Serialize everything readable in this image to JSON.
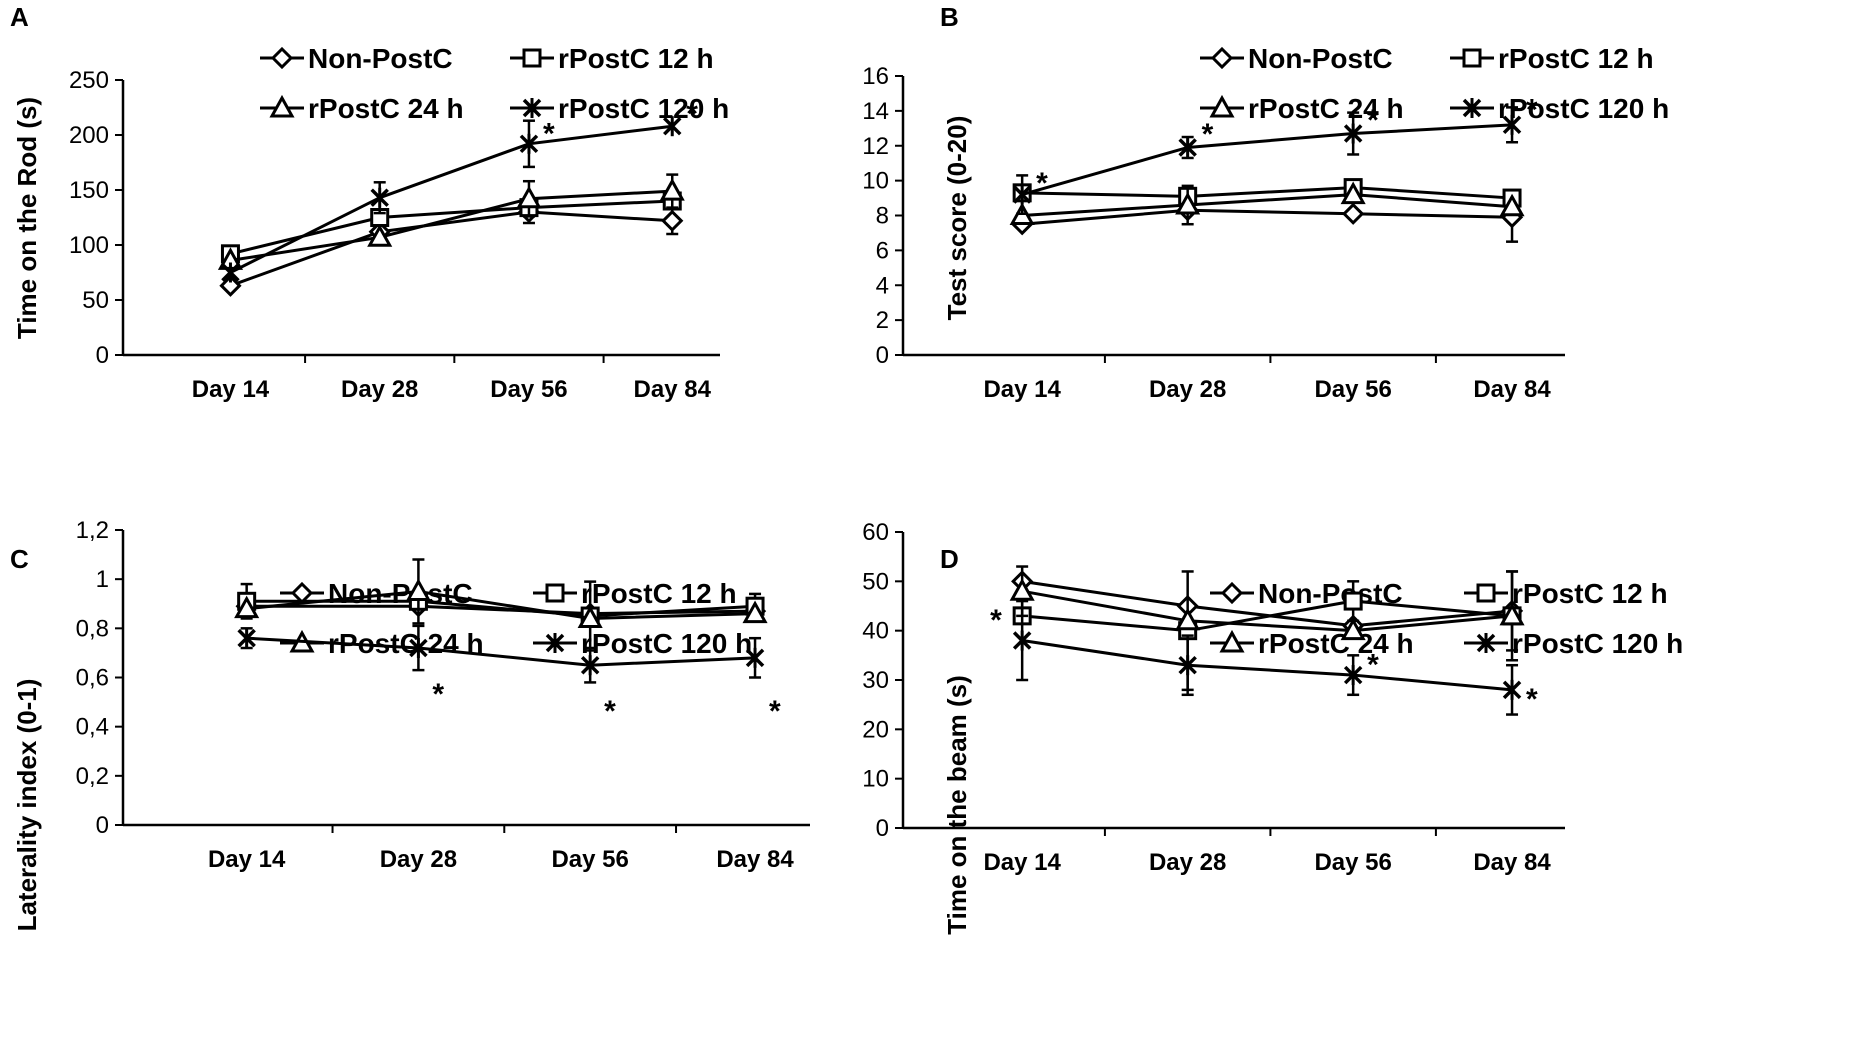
{
  "figure": {
    "chart_data": [
      {
        "id": "A",
        "panel_label": "A",
        "type": "line",
        "categories": [
          "Day 14",
          "Day 28",
          "Day 56",
          "Day 84"
        ],
        "ylabel": "Time on the Rod (s)",
        "ylim": [
          0,
          250
        ],
        "yticks": [
          "0",
          "50",
          "100",
          "150",
          "200",
          "250"
        ],
        "ytick_values": [
          0,
          50,
          100,
          150,
          200,
          250
        ],
        "series": [
          {
            "name": "Non-PostC",
            "marker": "diamond",
            "values": [
              63,
              112,
              130,
              122
            ],
            "errors": [
              0,
              0,
              10,
              12
            ]
          },
          {
            "name": "rPostC 12 h",
            "marker": "square",
            "values": [
              92,
              125,
              134,
              140
            ],
            "errors": [
              0,
              0,
              0,
              0
            ]
          },
          {
            "name": "rPostC 24 h",
            "marker": "triangle",
            "values": [
              86,
              107,
              142,
              149
            ],
            "errors": [
              0,
              0,
              16,
              15
            ]
          },
          {
            "name": "rPostC 120 h",
            "marker": "star",
            "values": [
              75,
              143,
              192,
              208
            ],
            "errors": [
              0,
              14,
              21,
              0
            ]
          }
        ],
        "annotations": [
          {
            "text": "*",
            "category": "Day 56",
            "value": 205
          },
          {
            "text": "*",
            "category": "Day 84",
            "value": 223
          }
        ]
      },
      {
        "id": "B",
        "panel_label": "B",
        "type": "line",
        "categories": [
          "Day 14",
          "Day 28",
          "Day 56",
          "Day 84"
        ],
        "ylabel": "Test score (0-20)",
        "ylim": [
          0,
          16
        ],
        "yticks": [
          "0",
          "2",
          "4",
          "6",
          "8",
          "10",
          "12",
          "14",
          "16"
        ],
        "ytick_values": [
          0,
          2,
          4,
          6,
          8,
          10,
          12,
          14,
          16
        ],
        "series": [
          {
            "name": "Non-PostC",
            "marker": "diamond",
            "values": [
              7.5,
              8.3,
              8.1,
              7.9
            ],
            "errors": [
              0,
              0,
              0,
              1.4
            ]
          },
          {
            "name": "rPostC 12 h",
            "marker": "square",
            "values": [
              9.3,
              9.1,
              9.6,
              9.0
            ],
            "errors": [
              0,
              0,
              0,
              0
            ]
          },
          {
            "name": "rPostC 24 h",
            "marker": "triangle",
            "values": [
              8.0,
              8.6,
              9.2,
              8.5
            ],
            "errors": [
              0,
              1.1,
              0,
              0
            ]
          },
          {
            "name": "rPostC 120 h",
            "marker": "star",
            "values": [
              9.2,
              11.9,
              12.7,
              13.2
            ],
            "errors": [
              1.1,
              0.6,
              1.2,
              1.0
            ]
          }
        ],
        "annotations": [
          {
            "text": "*",
            "category": "Day 14",
            "value": 10.1
          },
          {
            "text": "*",
            "category": "Day 28",
            "value": 12.9
          },
          {
            "text": "*",
            "category": "Day 56",
            "value": 13.7
          },
          {
            "text": "*",
            "category": "Day 84",
            "value": 14.3
          }
        ]
      },
      {
        "id": "C",
        "panel_label": "C",
        "type": "line",
        "categories": [
          "Day 14",
          "Day 28",
          "Day 56",
          "Day 84"
        ],
        "ylabel": "Laterality index (0-1)",
        "ylim": [
          0,
          1.2
        ],
        "yticks": [
          "0",
          "0,2",
          "0,4",
          "0,6",
          "0,8",
          "1",
          "1,2"
        ],
        "ytick_values": [
          0,
          0.2,
          0.4,
          0.6,
          0.8,
          1.0,
          1.2
        ],
        "series": [
          {
            "name": "Non-PostC",
            "marker": "diamond",
            "values": [
              0.89,
              0.89,
              0.86,
              0.87
            ],
            "errors": [
              0,
              0,
              0,
              0
            ]
          },
          {
            "name": "rPostC 12 h",
            "marker": "square",
            "values": [
              0.91,
              0.91,
              0.85,
              0.89
            ],
            "errors": [
              0.07,
              0,
              0.14,
              0.05
            ]
          },
          {
            "name": "rPostC 24 h",
            "marker": "triangle",
            "values": [
              0.88,
              0.95,
              0.84,
              0.86
            ],
            "errors": [
              0,
              0.13,
              0,
              0
            ]
          },
          {
            "name": "rPostC 120 h",
            "marker": "star",
            "values": [
              0.76,
              0.72,
              0.65,
              0.68
            ],
            "errors": [
              0.04,
              0.09,
              0.07,
              0.08
            ]
          }
        ],
        "annotations": [
          {
            "text": "*",
            "category": "Day 28",
            "value": 0.55
          },
          {
            "text": "*",
            "category": "Day 56",
            "value": 0.48
          },
          {
            "text": "*",
            "category": "Day 84",
            "value": 0.48
          }
        ]
      },
      {
        "id": "D",
        "panel_label": "D",
        "type": "line",
        "categories": [
          "Day 14",
          "Day 28",
          "Day 56",
          "Day 84"
        ],
        "ylabel": "Time on the beam (s)",
        "ylim": [
          0,
          60
        ],
        "yticks": [
          "0",
          "10",
          "20",
          "30",
          "40",
          "50",
          "60"
        ],
        "ytick_values": [
          0,
          10,
          20,
          30,
          40,
          50,
          60
        ],
        "series": [
          {
            "name": "Non-PostC",
            "marker": "diamond",
            "values": [
              50,
              45,
              41,
              44
            ],
            "errors": [
              0,
              0,
              0,
              8
            ]
          },
          {
            "name": "rPostC 12 h",
            "marker": "square",
            "values": [
              43,
              40,
              46,
              43
            ],
            "errors": [
              0,
              12,
              4,
              0
            ]
          },
          {
            "name": "rPostC 24 h",
            "marker": "triangle",
            "values": [
              48,
              42,
              40,
              43
            ],
            "errors": [
              5,
              0,
              0,
              9
            ]
          },
          {
            "name": "rPostC 120 h",
            "marker": "star",
            "values": [
              38,
              33,
              31,
              28
            ],
            "errors": [
              8,
              6,
              4,
              5
            ]
          }
        ],
        "annotations": [
          {
            "text": "*",
            "category": "Day 14",
            "value": 43,
            "side": "left"
          },
          {
            "text": "*",
            "category": "Day 56",
            "value": 34,
            "side": "right"
          },
          {
            "text": "*",
            "category": "Day 84",
            "value": 27,
            "side": "right"
          }
        ]
      }
    ]
  }
}
